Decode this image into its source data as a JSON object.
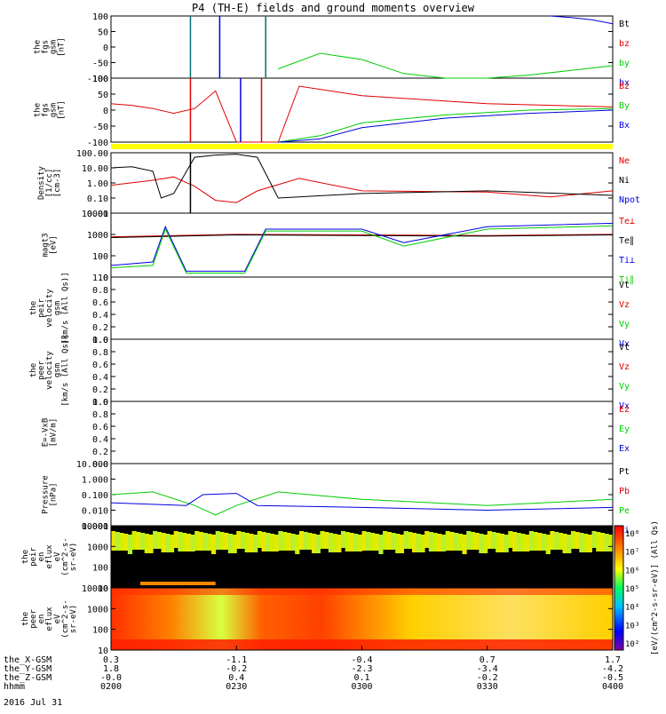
{
  "title": "P4 (TH-E) fields and ground moments overview",
  "date": "2016 Jul 31",
  "colors": {
    "black": "#000000",
    "red": "#e00000",
    "green": "#00cc00",
    "blue": "#0000e0",
    "yellow": "#ffff00",
    "teal": "#007070"
  },
  "panels": [
    {
      "id": "fgs",
      "ylabel": [
        "the",
        "fgs",
        "gsm",
        "[nT]"
      ],
      "ticks": [
        "100",
        "50",
        "0",
        "-50",
        "-100"
      ],
      "legend": [
        {
          "t": "Bt",
          "c": "black"
        },
        {
          "t": "bz",
          "c": "red"
        },
        {
          "t": "by",
          "c": "green"
        },
        {
          "t": "bx",
          "c": "blue"
        }
      ]
    },
    {
      "id": "fgs2",
      "ylabel": [
        "the",
        "fgs",
        "gsm",
        "[nT]"
      ],
      "ticks": [
        "100",
        "50",
        "0",
        "-50",
        "-100"
      ],
      "legend": [
        {
          "t": "Bz",
          "c": "red"
        },
        {
          "t": "By",
          "c": "green"
        },
        {
          "t": "Bx",
          "c": "blue"
        }
      ]
    },
    {
      "id": "density",
      "ylabel": [
        "Density",
        "[1/cc]",
        "[cm-3]"
      ],
      "ticks": [
        "100.00",
        "10.00",
        "1.00",
        "0.10",
        "0.01"
      ],
      "legend": [
        {
          "t": "Ne",
          "c": "red"
        },
        {
          "t": "Ni",
          "c": "black"
        },
        {
          "t": "Npot",
          "c": "blue"
        }
      ]
    },
    {
      "id": "temp",
      "ylabel": [
        "magt3",
        "[eV]"
      ],
      "ticks": [
        "10000",
        "1000",
        "100",
        "10"
      ],
      "legend": [
        {
          "t": "Te⊥",
          "c": "red"
        },
        {
          "t": "Te∥",
          "c": "black"
        },
        {
          "t": "Ti⊥",
          "c": "blue"
        },
        {
          "t": "Ti∥",
          "c": "green"
        }
      ]
    },
    {
      "id": "vpeir",
      "ylabel": [
        "the",
        "peir",
        "velocity",
        "gsm",
        "[km/s (All Qs)]"
      ],
      "ticks": [
        "1.0",
        "0.8",
        "0.6",
        "0.4",
        "0.2",
        "0.0"
      ],
      "legend": [
        {
          "t": "Vt",
          "c": "black"
        },
        {
          "t": "Vz",
          "c": "red"
        },
        {
          "t": "Vy",
          "c": "green"
        },
        {
          "t": "Vx",
          "c": "blue"
        }
      ]
    },
    {
      "id": "vpeer",
      "ylabel": [
        "the",
        "peer",
        "velocity",
        "gsm",
        "[km/s (All Qs)]"
      ],
      "ticks": [
        "1.0",
        "0.8",
        "0.6",
        "0.4",
        "0.2",
        "0.0"
      ],
      "legend": [
        {
          "t": "Vt",
          "c": "black"
        },
        {
          "t": "Vz",
          "c": "red"
        },
        {
          "t": "Vy",
          "c": "green"
        },
        {
          "t": "Vx",
          "c": "blue"
        }
      ]
    },
    {
      "id": "efield",
      "ylabel": [
        "E=-VxB",
        "[mV/m]"
      ],
      "ticks": [
        "1.0",
        "0.8",
        "0.6",
        "0.4",
        "0.2",
        "0.0"
      ],
      "legend": [
        {
          "t": "Ez",
          "c": "red"
        },
        {
          "t": "Ey",
          "c": "green"
        },
        {
          "t": "Ex",
          "c": "blue"
        }
      ]
    },
    {
      "id": "pressure",
      "ylabel": [
        "Pressure",
        "[nPa]"
      ],
      "ticks": [
        "10.000",
        "1.000",
        "0.100",
        "0.010",
        "0.001"
      ],
      "legend": [
        {
          "t": "Pt",
          "c": "black"
        },
        {
          "t": "Pb",
          "c": "red"
        },
        {
          "t": "Pe",
          "c": "green"
        },
        {
          "t": "Pi",
          "c": "blue"
        }
      ]
    },
    {
      "id": "peir",
      "ylabel": [
        "the",
        "peir",
        "en",
        "eflux",
        "eV",
        "(cm^2-s-",
        "sr-eV)"
      ],
      "ticks": [
        "10000",
        "1000",
        "100",
        "10"
      ],
      "legend": []
    },
    {
      "id": "peer",
      "ylabel": [
        "the",
        "peer",
        "en",
        "eflux",
        "eV",
        "(cm^2-s-",
        "sr-eV)"
      ],
      "ticks": [
        "10000",
        "1000",
        "100",
        "10"
      ],
      "legend": []
    }
  ],
  "colorbar": {
    "label": "[eV/(cm^2-s-sr-eV)] (All Qs)",
    "ticks": [
      "10⁸",
      "10⁷",
      "10⁶",
      "10⁵",
      "10⁴",
      "10³",
      "10²"
    ]
  },
  "xaxis": {
    "row_labels": [
      "the_X-GSM",
      "the_Y-GSM",
      "the_Z-GSM",
      "hhmm"
    ],
    "columns": [
      {
        "x": "0.3",
        "y": "1.8",
        "z": "-0.0",
        "t": "0200"
      },
      {
        "x": "-1.1",
        "y": "-0.2",
        "z": "0.4",
        "t": "0230"
      },
      {
        "x": "-0.4",
        "y": "-2.3",
        "z": "0.1",
        "t": "0300"
      },
      {
        "x": "0.7",
        "y": "-3.4",
        "z": "-0.2",
        "t": "0330"
      },
      {
        "x": "1.7",
        "y": "-4.2",
        "z": "-0.5",
        "t": "0400"
      }
    ]
  },
  "chart_data": {
    "type": "line",
    "title": "P4 (TH-E) fields and ground moments overview",
    "x_time_range": [
      "0200",
      "0400"
    ],
    "fgs_nT": {
      "series": [
        {
          "name": "Bt",
          "x": [],
          "values": []
        },
        {
          "name": "bz",
          "x": [],
          "values": []
        },
        {
          "name": "by",
          "x": [
            "0240",
            "0250",
            "0300",
            "0310",
            "0320",
            "0330",
            "0340",
            "0350",
            "0400"
          ],
          "values": [
            -70,
            -20,
            -40,
            -85,
            -100,
            -100,
            -90,
            -75,
            -60
          ]
        },
        {
          "name": "bx",
          "x": [
            "0345",
            "0350",
            "0355",
            "0400"
          ],
          "values": [
            100,
            95,
            88,
            75
          ]
        }
      ],
      "ylim": [
        -100,
        100
      ]
    },
    "fgs_2_nT": {
      "series": [
        {
          "name": "Bz",
          "x": [
            "0200",
            "0205",
            "0210",
            "0215",
            "0220",
            "0225",
            "0230",
            "0235",
            "0240",
            "0245",
            "0300",
            "0330",
            "0400"
          ],
          "values": [
            20,
            15,
            5,
            -10,
            5,
            60,
            -100,
            -100,
            -100,
            75,
            45,
            20,
            10
          ]
        },
        {
          "name": "By",
          "x": [
            "0240",
            "0250",
            "0300",
            "0320",
            "0340",
            "0400"
          ],
          "values": [
            -120,
            -80,
            -40,
            -15,
            0,
            5
          ]
        },
        {
          "name": "Bx",
          "x": [
            "0240",
            "0250",
            "0300",
            "0320",
            "0340",
            "0400"
          ],
          "values": [
            -120,
            -90,
            -55,
            -25,
            -10,
            0
          ]
        }
      ],
      "ylim": [
        -100,
        100
      ]
    },
    "density_cm3": {
      "series": [
        {
          "name": "Ne",
          "x": [
            "0200",
            "0210",
            "0215",
            "0220",
            "0225",
            "0230",
            "0235",
            "0245",
            "0300",
            "0330",
            "0345",
            "0400"
          ],
          "values": [
            0.7,
            1.5,
            2.5,
            0.6,
            0.07,
            0.05,
            0.3,
            2.0,
            0.3,
            0.25,
            0.12,
            0.3
          ]
        },
        {
          "name": "Ni",
          "x": [
            "0200",
            "0205",
            "0210",
            "0212",
            "0215",
            "0220",
            "0225",
            "0230",
            "0235",
            "0240",
            "0300",
            "0330",
            "0400"
          ],
          "values": [
            10,
            12,
            6,
            0.1,
            0.2,
            50,
            70,
            80,
            50,
            0.1,
            0.2,
            0.3,
            0.15
          ]
        },
        {
          "name": "Npot",
          "x": [],
          "values": []
        }
      ],
      "ylim": [
        0.01,
        100
      ],
      "yscale": "log"
    },
    "temperature_eV": {
      "series": [
        {
          "name": "Te⊥",
          "x": [
            "0200",
            "0230",
            "0300",
            "0330",
            "0400"
          ],
          "values": [
            600,
            800,
            750,
            700,
            800
          ]
        },
        {
          "name": "Te∥",
          "x": [
            "0200",
            "0230",
            "0300",
            "0330",
            "0400"
          ],
          "values": [
            550,
            750,
            700,
            650,
            750
          ]
        },
        {
          "name": "Ti⊥",
          "x": [
            "0200",
            "0210",
            "0213",
            "0218",
            "0232",
            "0237",
            "0300",
            "0310",
            "0330",
            "0400"
          ],
          "values": [
            20,
            30,
            2000,
            10,
            10,
            1500,
            1500,
            300,
            2000,
            3000
          ]
        },
        {
          "name": "Ti∥",
          "x": [
            "0200",
            "0210",
            "0213",
            "0218",
            "0232",
            "0237",
            "0300",
            "0310",
            "0330",
            "0400"
          ],
          "values": [
            15,
            20,
            1500,
            8,
            8,
            1200,
            1200,
            200,
            1500,
            2200
          ]
        }
      ],
      "ylim": [
        5,
        10000
      ],
      "yscale": "log"
    },
    "pressure_nPa": {
      "series": [
        {
          "name": "Pt",
          "x": [],
          "values": []
        },
        {
          "name": "Pb",
          "x": [],
          "values": []
        },
        {
          "name": "Pe",
          "x": [
            "0200",
            "0210",
            "0220",
            "0225",
            "0230",
            "0240",
            "0300",
            "0330",
            "0400"
          ],
          "values": [
            0.1,
            0.15,
            0.02,
            0.005,
            0.02,
            0.15,
            0.05,
            0.02,
            0.05
          ]
        },
        {
          "name": "Pi",
          "x": [
            "0200",
            "0218",
            "0222",
            "0230",
            "0235",
            "0300",
            "0330",
            "0400"
          ],
          "values": [
            0.03,
            0.02,
            0.1,
            0.12,
            0.02,
            0.015,
            0.01,
            0.015
          ]
        }
      ],
      "ylim": [
        0.001,
        10
      ],
      "yscale": "log"
    },
    "velocity_peir": {
      "series": [],
      "ylim": [
        0,
        1
      ]
    },
    "velocity_peer": {
      "series": [],
      "ylim": [
        0,
        1
      ]
    },
    "efield_mVm": {
      "series": [],
      "ylim": [
        0,
        1
      ]
    },
    "spectrogram_peir": {
      "type": "heatmap",
      "ylim": [
        5,
        20000
      ],
      "yscale": "log",
      "colorbar_range": [
        "10²",
        "10⁸"
      ]
    },
    "spectrogram_peer": {
      "type": "heatmap",
      "ylim": [
        5,
        20000
      ],
      "yscale": "log",
      "colorbar_range": [
        "10²",
        "10⁸"
      ]
    }
  }
}
